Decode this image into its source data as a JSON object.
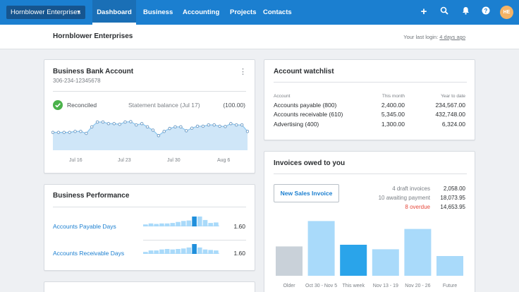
{
  "nav": {
    "org_switcher": "Hornblower Enterprises",
    "tabs": [
      "Dashboard",
      "Business",
      "Accounting",
      "Projects",
      "Contacts"
    ],
    "avatar_initials": "HE"
  },
  "subheader": {
    "org_name": "Hornblower Enterprises",
    "last_login_prefix": "Your last login:",
    "last_login_value": "4 days ago"
  },
  "bank": {
    "title": "Business Bank Account",
    "account_number": "306-234-12345678",
    "reconciled": "Reconciled",
    "statement_label": "Statement balance (Jul 17)",
    "statement_value": "(100.00)",
    "x_labels": [
      "Jul 16",
      "Jul 23",
      "Jul 30",
      "Aug 6"
    ],
    "series": [
      0.55,
      0.55,
      0.55,
      0.55,
      0.58,
      0.58,
      0.52,
      0.72,
      0.87,
      0.87,
      0.82,
      0.82,
      0.8,
      0.87,
      0.88,
      0.78,
      0.82,
      0.72,
      0.62,
      0.45,
      0.58,
      0.67,
      0.72,
      0.72,
      0.6,
      0.68,
      0.74,
      0.74,
      0.78,
      0.78,
      0.74,
      0.73,
      0.82,
      0.78,
      0.78,
      0.58
    ]
  },
  "performance": {
    "title": "Business Performance",
    "rows": [
      {
        "label": "Accounts Payable Days",
        "value": "1.60",
        "bars": [
          0.2,
          0.3,
          0.25,
          0.3,
          0.3,
          0.35,
          0.45,
          0.55,
          0.6,
          1.0,
          1.0,
          0.65,
          0.35,
          0.4
        ]
      },
      {
        "label": "Accounts Receivable Days",
        "value": "1.60",
        "bars": [
          0.2,
          0.35,
          0.35,
          0.45,
          0.5,
          0.45,
          0.5,
          0.55,
          0.65,
          1.0,
          0.65,
          0.45,
          0.4,
          0.35
        ]
      }
    ]
  },
  "watchlist": {
    "title": "Account watchlist",
    "headers": [
      "Account",
      "This month",
      "Year to date"
    ],
    "rows": [
      [
        "Accounts payable (800)",
        "2,400.00",
        "234,567.00"
      ],
      [
        "Accounts receivable (610)",
        "5,345.00",
        "432,748.00"
      ],
      [
        "Advertising (400)",
        "1,300.00",
        "6,324.00"
      ]
    ]
  },
  "invoices": {
    "title": "Invoices owed to you",
    "new_button": "New Sales Invoice",
    "summary": [
      {
        "label": "4 draft invoices",
        "value": "2,058.00",
        "color": "#7a7f85"
      },
      {
        "label": "10 awaiting payment",
        "value": "18,073.95",
        "color": "#7a7f85"
      },
      {
        "label": "8 overdue",
        "value": "14,653.95",
        "color": "#e6493c"
      }
    ],
    "chart_data": {
      "type": "bar",
      "categories": [
        "Older",
        "Oct 30 - Nov 5",
        "This week",
        "Nov 13 - 19",
        "Nov 20 - 26",
        "Future"
      ],
      "values": [
        0.52,
        0.97,
        0.55,
        0.47,
        0.83,
        0.35
      ],
      "colors": [
        "#c9d1d9",
        "#a9dafa",
        "#2aa4ea",
        "#a9dafa",
        "#a9dafa",
        "#a9dafa"
      ]
    }
  },
  "colors": {
    "brand": "#1b7fd0",
    "overdue": "#e6493c",
    "success": "#4bb24b"
  }
}
